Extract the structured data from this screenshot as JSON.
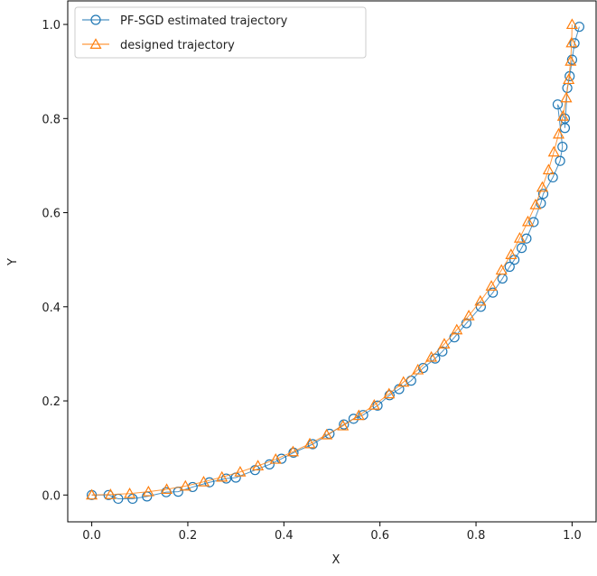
{
  "chart_data": {
    "type": "line",
    "xlabel": "X",
    "ylabel": "Y",
    "xlim": [
      -0.05,
      1.05
    ],
    "ylim": [
      -0.057,
      1.05
    ],
    "xticks": [
      {
        "value": 0,
        "label": "0.0"
      },
      0.2,
      0.4,
      0.6,
      0.8,
      {
        "value": 1,
        "label": "1.0"
      }
    ],
    "yticks": [
      {
        "value": 0,
        "label": "0.0"
      },
      0.2,
      0.4,
      0.6,
      0.8,
      {
        "value": 1,
        "label": "1.0"
      }
    ],
    "legend": "upper-left",
    "series": [
      {
        "name": "PF-SGD estimated trajectory",
        "color": "#1f77b4",
        "marker": "circle",
        "x": [
          0,
          0.035,
          0.055,
          0.085,
          0.115,
          0.155,
          0.18,
          0.21,
          0.245,
          0.28,
          0.3,
          0.34,
          0.37,
          0.395,
          0.42,
          0.46,
          0.495,
          0.525,
          0.545,
          0.565,
          0.595,
          0.62,
          0.64,
          0.665,
          0.69,
          0.715,
          0.73,
          0.755,
          0.78,
          0.81,
          0.835,
          0.855,
          0.87,
          0.88,
          0.895,
          0.905,
          0.92,
          0.935,
          0.94,
          0.96,
          0.975,
          0.98,
          0.97,
          0.985,
          0.985,
          0.99,
          0.995,
          1.0,
          1.005,
          1.015
        ],
        "values": [
          0.0,
          0.0,
          -0.008,
          -0.008,
          -0.003,
          0.006,
          0.007,
          0.017,
          0.027,
          0.035,
          0.037,
          0.053,
          0.065,
          0.077,
          0.09,
          0.108,
          0.13,
          0.15,
          0.162,
          0.17,
          0.19,
          0.212,
          0.225,
          0.243,
          0.27,
          0.29,
          0.305,
          0.335,
          0.365,
          0.4,
          0.43,
          0.46,
          0.485,
          0.5,
          0.525,
          0.545,
          0.58,
          0.62,
          0.64,
          0.675,
          0.71,
          0.74,
          0.83,
          0.8,
          0.78,
          0.865,
          0.89,
          0.925,
          0.96,
          0.995
        ]
      },
      {
        "name": "designed trajectory",
        "color": "#ff7f0e",
        "marker": "triangle",
        "x": [
          0,
          0.039,
          0.079,
          0.118,
          0.156,
          0.195,
          0.233,
          0.271,
          0.309,
          0.346,
          0.383,
          0.419,
          0.454,
          0.489,
          0.523,
          0.556,
          0.588,
          0.619,
          0.649,
          0.679,
          0.707,
          0.734,
          0.76,
          0.785,
          0.809,
          0.832,
          0.853,
          0.873,
          0.891,
          0.908,
          0.924,
          0.938,
          0.951,
          0.962,
          0.972,
          0.981,
          0.988,
          0.993,
          0.997,
          0.999,
          1.0
        ],
        "values": [
          0,
          0.001,
          0.003,
          0.007,
          0.012,
          0.019,
          0.028,
          0.038,
          0.049,
          0.062,
          0.076,
          0.092,
          0.109,
          0.128,
          0.147,
          0.169,
          0.191,
          0.215,
          0.24,
          0.266,
          0.293,
          0.321,
          0.351,
          0.381,
          0.412,
          0.444,
          0.478,
          0.511,
          0.546,
          0.581,
          0.617,
          0.654,
          0.691,
          0.729,
          0.767,
          0.805,
          0.844,
          0.883,
          0.922,
          0.961,
          1.0
        ]
      }
    ]
  }
}
